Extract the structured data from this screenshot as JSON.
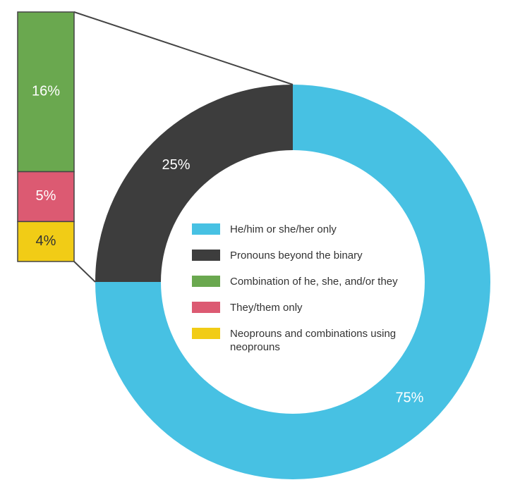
{
  "chart_data": {
    "type": "donut",
    "categories": [
      "He/him or she/her only",
      "Pronouns beyond the binary"
    ],
    "values": [
      75,
      25
    ],
    "value_labels": [
      "75%",
      "25%"
    ],
    "colors": [
      "#47c1e3",
      "#3d3d3d"
    ],
    "breakdown": {
      "categories": [
        "Combination of he, she, and/or they",
        "They/them only",
        "Neoprouns and combinations using neoprouns"
      ],
      "values": [
        16,
        5,
        4
      ],
      "value_labels": [
        "16%",
        "5%",
        "4%"
      ],
      "colors": [
        "#6aa84f",
        "#dc5a72",
        "#f1cc16"
      ]
    }
  }
}
